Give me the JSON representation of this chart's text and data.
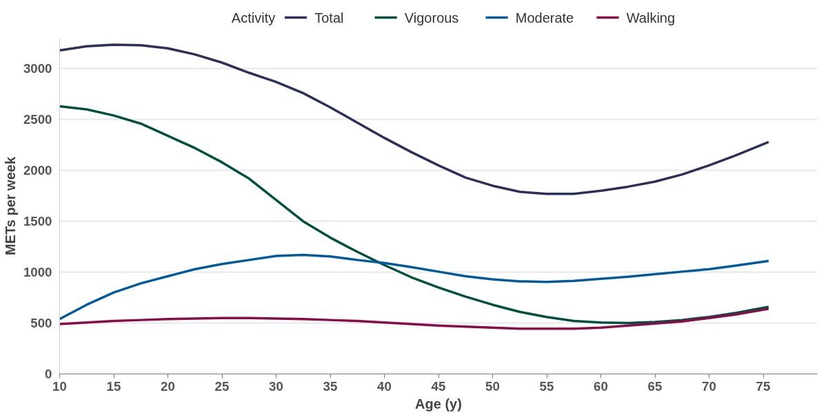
{
  "chart_data": {
    "type": "line",
    "xlabel": "Age (y)",
    "ylabel": "METs per week",
    "legend_title": "Activity",
    "legend": "top",
    "grid": "y",
    "marker": "none",
    "line_style": "solid",
    "x": [
      10,
      12.5,
      15,
      17.5,
      20,
      22.5,
      25,
      27.5,
      30,
      32.5,
      35,
      37.5,
      40,
      42.5,
      45,
      47.5,
      50,
      52.5,
      55,
      57.5,
      60,
      62.5,
      65,
      67.5,
      70,
      72.5,
      75.5
    ],
    "xlim": [
      10,
      80
    ],
    "xticks": [
      10,
      15,
      20,
      25,
      30,
      35,
      40,
      45,
      50,
      55,
      60,
      65,
      70,
      75
    ],
    "ylim": [
      0,
      3300
    ],
    "yticks": [
      0,
      500,
      1000,
      1500,
      2000,
      2500,
      3000
    ],
    "series": [
      {
        "name": "Total",
        "color": "#2b2f5b",
        "values": [
          3180,
          3220,
          3235,
          3230,
          3200,
          3140,
          3060,
          2960,
          2870,
          2760,
          2620,
          2470,
          2320,
          2180,
          2050,
          1930,
          1850,
          1790,
          1770,
          1770,
          1800,
          1840,
          1890,
          1960,
          2050,
          2150,
          2280
        ]
      },
      {
        "name": "Vigorous",
        "color": "#005040",
        "values": [
          2630,
          2600,
          2540,
          2460,
          2340,
          2220,
          2080,
          1920,
          1710,
          1500,
          1340,
          1200,
          1070,
          950,
          850,
          760,
          680,
          610,
          560,
          520,
          505,
          500,
          510,
          530,
          560,
          600,
          660
        ]
      },
      {
        "name": "Moderate",
        "color": "#005aa0",
        "values": [
          540,
          680,
          800,
          890,
          960,
          1030,
          1080,
          1120,
          1160,
          1170,
          1155,
          1120,
          1090,
          1050,
          1005,
          960,
          930,
          910,
          905,
          915,
          935,
          955,
          980,
          1005,
          1030,
          1065,
          1110
        ]
      },
      {
        "name": "Walking",
        "color": "#8a0a4a",
        "values": [
          490,
          505,
          520,
          530,
          540,
          545,
          550,
          550,
          545,
          540,
          530,
          520,
          505,
          490,
          475,
          465,
          455,
          445,
          445,
          445,
          455,
          475,
          495,
          515,
          550,
          585,
          640
        ]
      }
    ]
  }
}
